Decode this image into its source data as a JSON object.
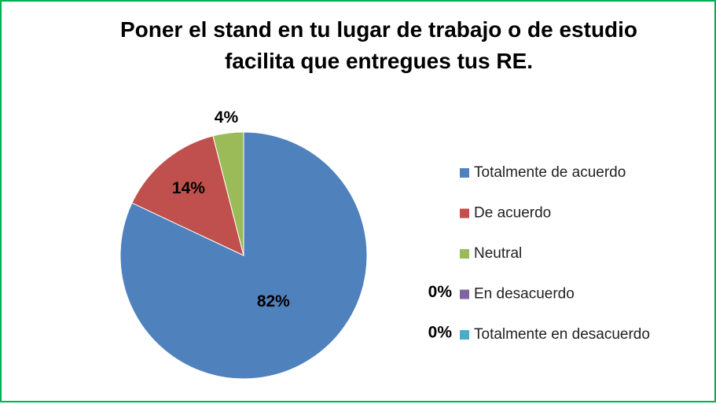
{
  "chart_data": {
    "type": "pie",
    "title": "Poner el stand en tu lugar de trabajo o de estudio facilita que entregues tus RE.",
    "categories": [
      "Totalmente de acuerdo",
      "De acuerdo",
      "Neutral",
      "En desacuerdo",
      "Totalmente en desacuerdo"
    ],
    "values": [
      82,
      14,
      4,
      0,
      0
    ],
    "value_labels": [
      "82%",
      "14%",
      "4%",
      "0%",
      "0%"
    ],
    "colors": [
      "#4f81bd",
      "#c0504d",
      "#9bbb59",
      "#8064a2",
      "#4bacc6"
    ],
    "legend": "right"
  }
}
